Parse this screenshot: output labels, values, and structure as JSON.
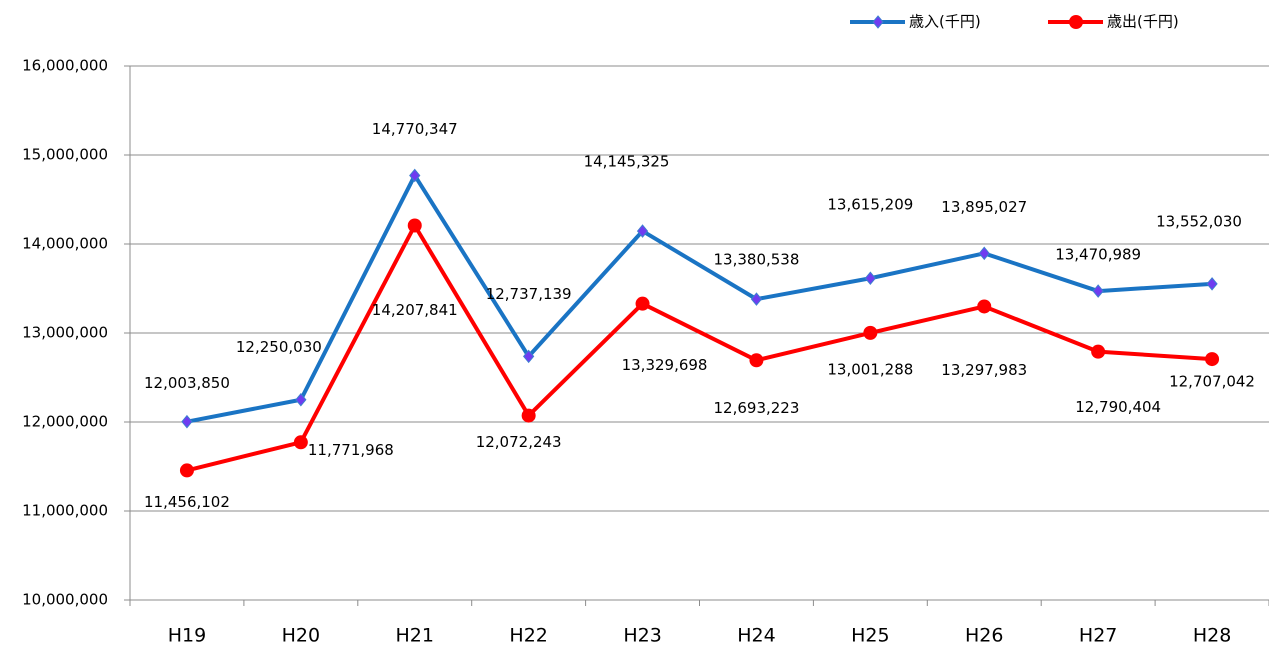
{
  "chart_data": {
    "type": "line",
    "categories": [
      "H19",
      "H20",
      "H21",
      "H22",
      "H23",
      "H24",
      "H25",
      "H26",
      "H27",
      "H28"
    ],
    "series": [
      {
        "name": "歳入(千円)",
        "color": "#1a74c4",
        "marker_color": "#6f3cf0",
        "marker": "diamond",
        "values": [
          12003850,
          12250030,
          14770347,
          12737139,
          14145325,
          13380538,
          13615209,
          13895027,
          13470989,
          13552030
        ],
        "value_labels": [
          "12,003,850",
          "12,250,030",
          "14,770,347",
          "12,737,139",
          "14,145,325",
          "13,380,538",
          "13,615,209",
          "13,895,027",
          "13,470,989",
          "13,552,030"
        ]
      },
      {
        "name": "歳出(千円)",
        "color": "#ff0000",
        "marker_color": "#ff0000",
        "marker": "circle",
        "values": [
          11456102,
          11771968,
          14207841,
          12072243,
          13329698,
          12693223,
          13001288,
          13297983,
          12790404,
          12707042
        ],
        "value_labels": [
          "11,456,102",
          "11,771,968",
          "14,207,841",
          "12,072,243",
          "13,329,698",
          "12,693,223",
          "13,001,288",
          "13,297,983",
          "12,790,404",
          "12,707,042"
        ]
      }
    ],
    "ylim": [
      10000000,
      16000000
    ],
    "yticks": [
      {
        "value": 10000000,
        "label": "10,000,000"
      },
      {
        "value": 11000000,
        "label": "11,000,000"
      },
      {
        "value": 12000000,
        "label": "12,000,000"
      },
      {
        "value": 13000000,
        "label": "13,000,000"
      },
      {
        "value": 14000000,
        "label": "14,000,000"
      },
      {
        "value": 15000000,
        "label": "15,000,000"
      },
      {
        "value": 16000000,
        "label": "16,000,000"
      }
    ],
    "grid": true,
    "legend": "top-right"
  }
}
